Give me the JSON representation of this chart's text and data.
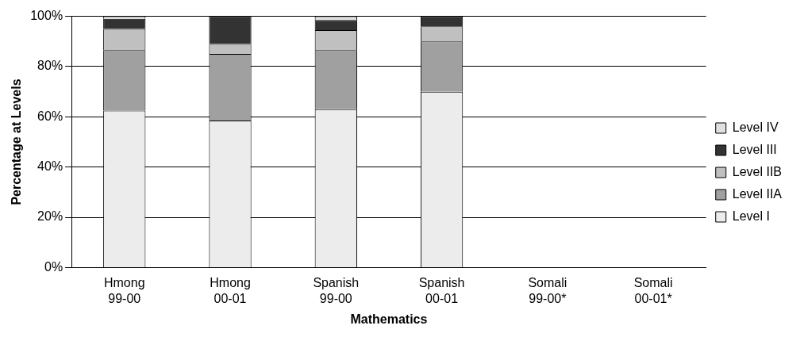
{
  "chart_data": {
    "type": "bar",
    "stacked": true,
    "xlabel": "Mathematics",
    "ylabel": "Percentage at Levels",
    "categories": [
      "Hmong\n99-00",
      "Hmong\n00-01",
      "Spanish\n99-00",
      "Spanish\n00-01",
      "Somali\n99-00*",
      "Somali\n00-01*"
    ],
    "series": [
      {
        "name": "Level I",
        "color": "#ececec",
        "values": [
          62.5,
          58.5,
          63,
          70,
          null,
          null
        ]
      },
      {
        "name": "Level IIA",
        "color": "#a0a0a0",
        "values": [
          24,
          26.5,
          23.5,
          20,
          null,
          null
        ]
      },
      {
        "name": "Level IIB",
        "color": "#c0c0c0",
        "values": [
          8.5,
          4,
          8,
          6,
          null,
          null
        ]
      },
      {
        "name": "Level III",
        "color": "#333333",
        "values": [
          4,
          11,
          4,
          4,
          null,
          null
        ]
      },
      {
        "name": "Level IV",
        "color": "#e0e0e0",
        "values": [
          1,
          0,
          1.5,
          0,
          null,
          null
        ]
      }
    ],
    "ylim": [
      0,
      100
    ],
    "yticks": [
      {
        "value": 0,
        "label": "0%"
      },
      {
        "value": 20,
        "label": "20%"
      },
      {
        "value": 40,
        "label": "40%"
      },
      {
        "value": 60,
        "label": "60%"
      },
      {
        "value": 80,
        "label": "80%"
      },
      {
        "value": 100,
        "label": "100%"
      }
    ],
    "grid": "y",
    "legend": "right"
  }
}
